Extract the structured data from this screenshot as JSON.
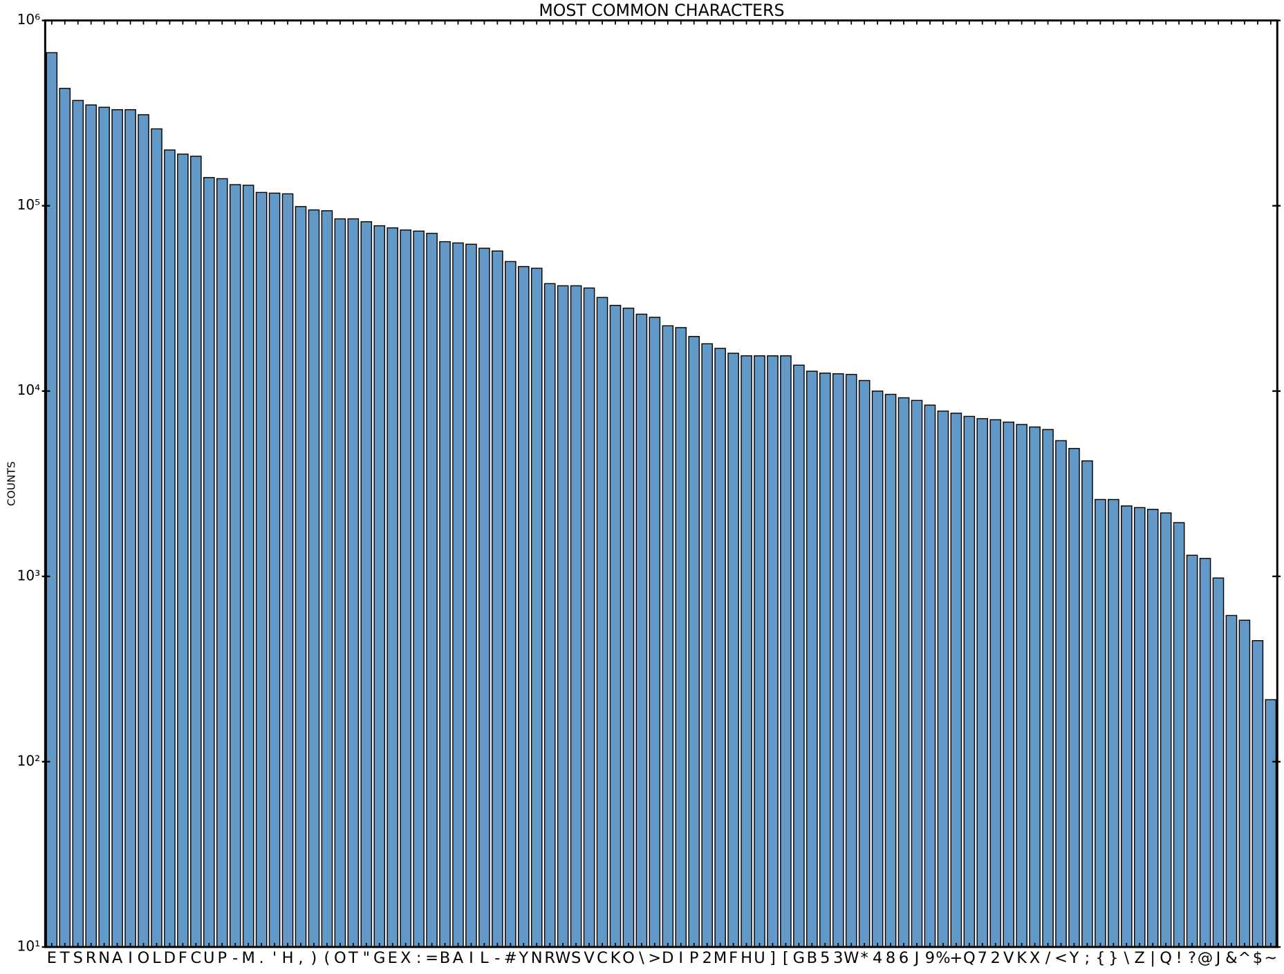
{
  "chart_data": {
    "type": "bar",
    "title": "MOST COMMON CHARACTERS",
    "y_label": "COUNTS",
    "categories": [
      "E",
      "T",
      "S",
      "R",
      "N",
      "A",
      "I",
      "O",
      "L",
      "D",
      "F",
      "C",
      "U",
      "P",
      "-",
      "M",
      ".",
      "'",
      "H",
      ",",
      ")",
      "(",
      "O",
      "T",
      "\"",
      "G",
      "E",
      "X",
      ":",
      "=",
      "B",
      "A",
      "I",
      "L",
      "-",
      "#",
      "Y",
      "N",
      "R",
      "W",
      "S",
      "V",
      "C",
      "K",
      "O",
      "\\",
      ">",
      "D",
      "I",
      "P",
      "2",
      "M",
      "F",
      "H",
      "U",
      "]",
      "[",
      "G",
      "B",
      "5",
      "3",
      "W",
      "*",
      "4",
      "8",
      "6",
      "J",
      "9",
      "%",
      "+",
      "Q",
      "7",
      "2",
      "V",
      "K",
      "X",
      "/",
      "<",
      "Y",
      ";",
      "{",
      "}",
      "\\",
      "Z",
      "|",
      "Q",
      "!",
      "?",
      "@",
      "J",
      "&",
      "^",
      "$",
      "~"
    ],
    "values": [
      670000,
      430000,
      370000,
      350000,
      340000,
      330000,
      330000,
      310000,
      260000,
      200000,
      190000,
      185000,
      142000,
      140000,
      130000,
      129000,
      118000,
      117000,
      116000,
      99000,
      95000,
      94000,
      85000,
      85000,
      82000,
      78000,
      76000,
      74000,
      73000,
      71000,
      64000,
      63000,
      62000,
      59000,
      57000,
      50000,
      47000,
      46000,
      38000,
      37000,
      37000,
      36000,
      32000,
      29000,
      28000,
      26000,
      25000,
      22500,
      22000,
      19700,
      18000,
      17000,
      16000,
      15500,
      15500,
      15500,
      15500,
      13800,
      12800,
      12500,
      12400,
      12300,
      11400,
      10000,
      9600,
      9200,
      8900,
      8400,
      7800,
      7600,
      7300,
      7100,
      7000,
      6800,
      6600,
      6400,
      6200,
      5400,
      4900,
      4200,
      2600,
      2600,
      2400,
      2350,
      2300,
      2200,
      1950,
      1300,
      1250,
      980,
      615,
      580,
      450,
      216
    ],
    "color": "#6399c6",
    "log_y": true,
    "ylim": [
      10,
      1000000
    ],
    "yticks": [
      {
        "value": 10,
        "label": "10¹"
      },
      {
        "value": 100,
        "label": "10²"
      },
      {
        "value": 1000,
        "label": "10³"
      },
      {
        "value": 10000,
        "label": "10⁴"
      },
      {
        "value": 100000,
        "label": "10⁵"
      },
      {
        "value": 1000000,
        "label": "10⁶"
      }
    ]
  }
}
